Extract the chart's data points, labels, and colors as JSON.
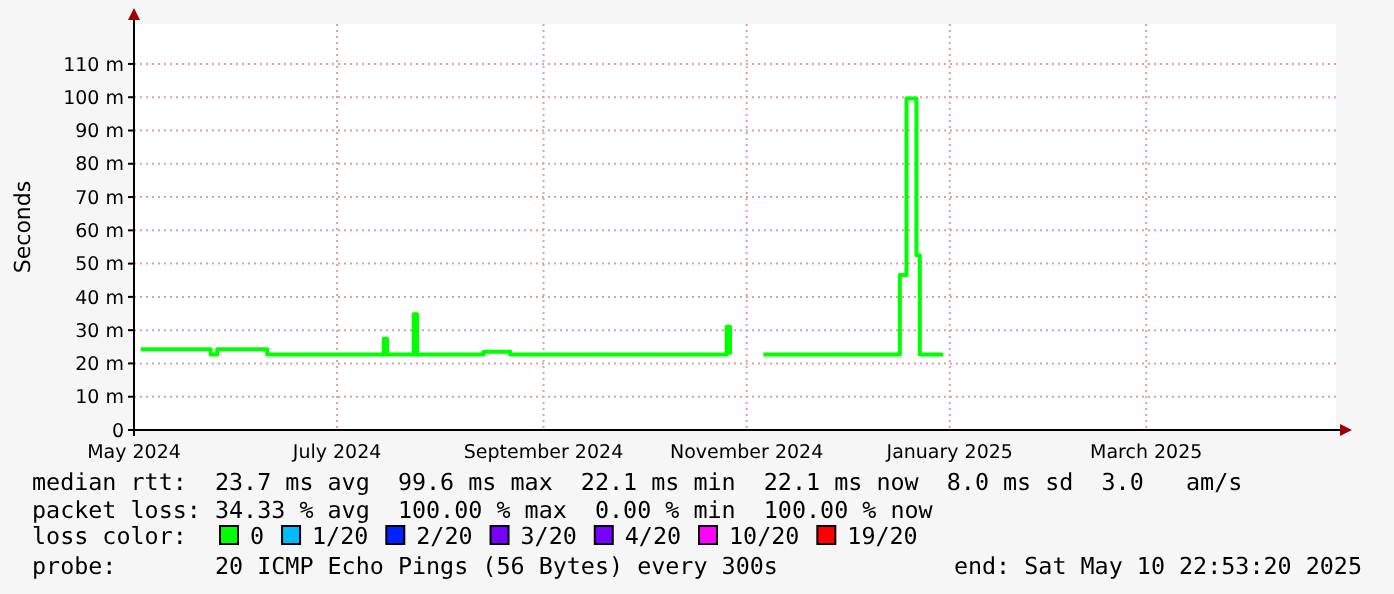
{
  "chart_data": {
    "type": "step",
    "ylabel": "Seconds",
    "x": [
      "2024-05-17",
      "2024-06-07",
      "2024-06-09",
      "2024-06-24",
      "2024-07-29",
      "2024-07-30",
      "2024-08-07",
      "2024-08-08",
      "2024-08-28",
      "2024-09-05",
      "2024-11-09",
      "2024-11-10",
      "2024-11-16",
      "2024-11-20",
      "2024-12-31",
      "2025-01-02",
      "2025-01-05",
      "2025-01-06",
      "2025-01-13"
    ],
    "series": [
      {
        "color": "#00ff00",
        "values": [
          24.3,
          22.7,
          24.3,
          22.7,
          27.4,
          22.7,
          34.8,
          22.7,
          23.5,
          22.7,
          31,
          22.7,
          null,
          22.7,
          46.6,
          99.6,
          52.5,
          22.7,
          22.7
        ]
      }
    ],
    "xlim": [
      "2024-05-15",
      "2025-05-11"
    ],
    "xticks": [
      {
        "value": "2024-05-15",
        "label": "May 2024"
      },
      {
        "value": "2024-07-15",
        "label": "July 2024"
      },
      {
        "value": "2024-09-15",
        "label": "September 2024"
      },
      {
        "value": "2024-11-15",
        "label": "November 2024"
      },
      {
        "value": "2025-01-15",
        "label": "January 2025"
      },
      {
        "value": "2025-03-15",
        "label": "March 2025"
      }
    ],
    "ylim": [
      0,
      122
    ],
    "yticks": [
      0,
      {
        "value": 10,
        "label": "10 m"
      },
      {
        "value": 20,
        "label": "20 m"
      },
      {
        "value": 30,
        "label": "30 m"
      },
      {
        "value": 40,
        "label": "40 m"
      },
      {
        "value": 50,
        "label": "50 m"
      },
      {
        "value": 60,
        "label": "60 m"
      },
      {
        "value": 70,
        "label": "70 m"
      },
      {
        "value": 80,
        "label": "80 m"
      },
      {
        "value": 90,
        "label": "90 m"
      },
      {
        "value": 100,
        "label": "100 m"
      },
      {
        "value": 110,
        "label": "110 m"
      }
    ],
    "grid": true,
    "annotations": [
      "median rtt:  23.7 ms avg  99.6 ms max  22.1 ms min  22.1 ms now  8.0 ms sd  3.0   am/s",
      "packet loss: 34.33 % avg  100.00 % max  0.00 % min  100.00 % now",
      "loss color:",
      "0",
      "1/20",
      "2/20",
      "3/20",
      "4/20",
      "10/20",
      "19/20",
      "probe:       20 ICMP Echo Pings (56 Bytes) every 300s",
      "end: Sat May 10 22:53:20 2025"
    ]
  }
}
